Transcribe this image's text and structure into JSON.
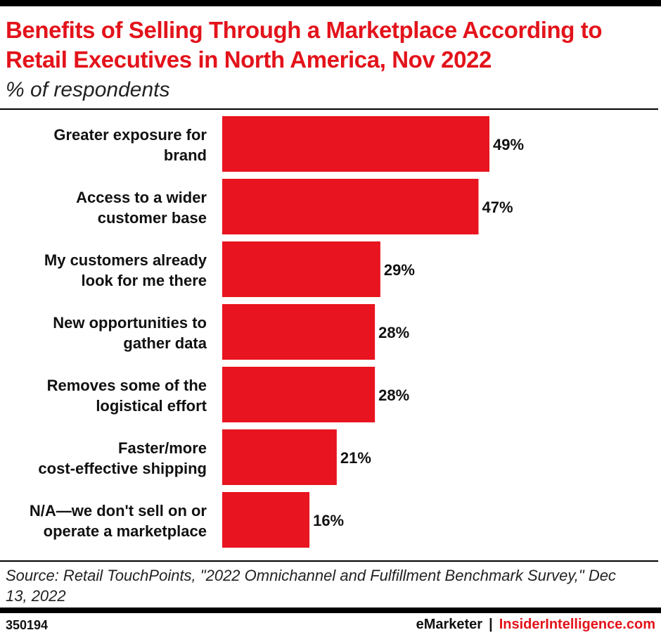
{
  "header": {
    "title": "Benefits of Selling Through a Marketplace According to Retail Executives in North America, Nov 2022",
    "subtitle": "% of respondents"
  },
  "chart_data": {
    "type": "bar",
    "orientation": "horizontal",
    "categories": [
      [
        "Greater exposure for",
        "brand"
      ],
      [
        "Access to a wider",
        "customer base"
      ],
      [
        "My customers already",
        "look for me there"
      ],
      [
        "New opportunities to",
        "gather data"
      ],
      [
        "Removes some of the",
        "logistical effort"
      ],
      [
        "Faster/more",
        "cost-effective shipping"
      ],
      [
        "N/A—we don't sell on or",
        "operate a marketplace"
      ]
    ],
    "values": [
      49,
      47,
      29,
      28,
      28,
      21,
      16
    ],
    "value_labels": [
      "49%",
      "47%",
      "29%",
      "28%",
      "28%",
      "21%",
      "16%"
    ],
    "xlim": [
      0,
      49
    ],
    "bar_color": "#e8141f",
    "grid": false,
    "legend": "none"
  },
  "footer": {
    "source": "Source: Retail TouchPoints, \"2022 Omnichannel and Fulfillment Benchmark Survey,\" Dec 13, 2022",
    "chart_id": "350194",
    "brand_emarketer": "eMarketer",
    "brand_separator": "|",
    "brand_insider": "InsiderIntelligence.com"
  },
  "colors": {
    "accent": "#e3131b",
    "text": "#111111"
  }
}
